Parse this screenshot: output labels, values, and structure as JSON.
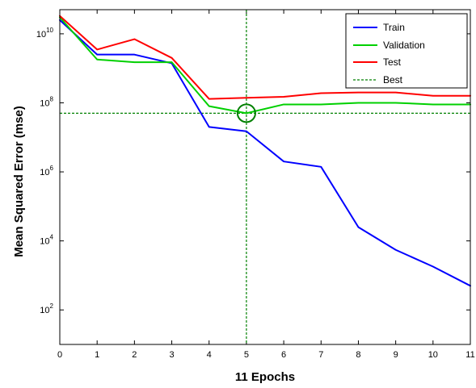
{
  "chart_data": {
    "type": "line",
    "x": [
      0,
      1,
      2,
      3,
      4,
      5,
      6,
      7,
      8,
      9,
      10,
      11
    ],
    "xlabel": "11 Epochs",
    "ylabel": "Mean Squared Error  (mse)",
    "xlim": [
      0,
      11
    ],
    "ylim": [
      10,
      50000000000
    ],
    "yscale": "log",
    "x_ticks": [
      "0",
      "1",
      "2",
      "3",
      "4",
      "5",
      "6",
      "7",
      "8",
      "9",
      "10",
      "11"
    ],
    "y_ticks": [
      {
        "value": 100,
        "base": "10",
        "exp": "2"
      },
      {
        "value": 10000,
        "base": "10",
        "exp": "4"
      },
      {
        "value": 1000000,
        "base": "10",
        "exp": "6"
      },
      {
        "value": 100000000,
        "base": "10",
        "exp": "8"
      },
      {
        "value": 10000000000,
        "base": "10",
        "exp": "10"
      }
    ],
    "grid": false,
    "legend_position": "top-right",
    "series": [
      {
        "name": "Train",
        "color": "#0000ff",
        "values": [
          25000000000,
          2500000000,
          2500000000,
          1400000000,
          20000000,
          15000000,
          2000000,
          1400000,
          25000,
          5500,
          1800,
          500
        ]
      },
      {
        "name": "Validation",
        "color": "#00d000",
        "values": [
          30000000000,
          1800000000,
          1500000000,
          1500000000,
          80000000,
          50000000,
          90000000,
          90000000,
          100000000,
          100000000,
          90000000,
          90000000
        ]
      },
      {
        "name": "Test",
        "color": "#ff0000",
        "values": [
          33000000000,
          3500000000,
          7000000000,
          2000000000,
          130000000,
          140000000,
          150000000,
          190000000,
          200000000,
          200000000,
          160000000,
          160000000
        ]
      }
    ],
    "best": {
      "name": "Best",
      "color": "#008000",
      "epoch": 5,
      "value": 50000000
    }
  }
}
